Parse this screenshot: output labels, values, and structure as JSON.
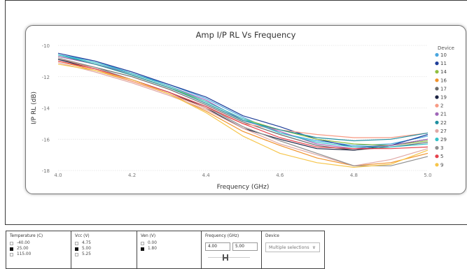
{
  "colors": {
    "10": "#4aa6df",
    "11": "#1f3f9a",
    "14": "#8fbf3f",
    "16": "#f0922b",
    "17": "#6b6b6b",
    "19": "#1b2342",
    "2": "#f79b85",
    "21": "#a067b8",
    "22": "#1f8fa0",
    "27": "#e0a9a6",
    "29": "#35c2c9",
    "3": "#8f8f8f",
    "5": "#e5424d",
    "9": "#f6c54a"
  },
  "chart_data": {
    "type": "line",
    "title": "Amp I/P RL Vs Frequency",
    "xlabel": "Frequency (GHz)",
    "ylabel": "I/P RL (dB)",
    "xlim": [
      4.0,
      5.0
    ],
    "ylim": [
      -18,
      -10
    ],
    "x_ticks": [
      "4.0",
      "4.2",
      "4.4",
      "4.6",
      "4.8",
      "5.0"
    ],
    "y_ticks": [
      "-10",
      "-12",
      "-14",
      "-16",
      "-18"
    ],
    "x": [
      4.0,
      4.1,
      4.2,
      4.3,
      4.4,
      4.5,
      4.6,
      4.7,
      4.8,
      4.9,
      5.0
    ],
    "legend_title": "Device",
    "legend_position": "right",
    "series": [
      {
        "name": "10",
        "values": [
          -10.6,
          -11.0,
          -11.8,
          -12.5,
          -13.4,
          -14.6,
          -15.6,
          -16.1,
          -16.4,
          -16.3,
          -15.8
        ]
      },
      {
        "name": "11",
        "values": [
          -10.5,
          -11.0,
          -11.7,
          -12.5,
          -13.3,
          -14.5,
          -15.2,
          -16.0,
          -16.5,
          -16.4,
          -15.7
        ]
      },
      {
        "name": "14",
        "values": [
          -10.7,
          -11.2,
          -11.9,
          -12.7,
          -13.6,
          -14.7,
          -15.4,
          -16.0,
          -16.3,
          -16.4,
          -16.1
        ]
      },
      {
        "name": "16",
        "values": [
          -11.0,
          -11.6,
          -12.3,
          -13.1,
          -14.2,
          -15.5,
          -16.4,
          -17.2,
          -17.7,
          -17.5,
          -16.9
        ]
      },
      {
        "name": "17",
        "values": [
          -10.9,
          -11.4,
          -12.0,
          -12.8,
          -13.8,
          -14.9,
          -15.7,
          -16.4,
          -16.7,
          -16.5,
          -16.2
        ]
      },
      {
        "name": "19",
        "values": [
          -10.9,
          -11.5,
          -12.2,
          -13.0,
          -14.0,
          -15.3,
          -16.0,
          -16.6,
          -16.7,
          -16.4,
          -16.0
        ]
      },
      {
        "name": "2",
        "values": [
          -10.8,
          -11.5,
          -12.3,
          -13.1,
          -14.0,
          -15.0,
          -15.4,
          -15.7,
          -15.9,
          -15.9,
          -15.6
        ]
      },
      {
        "name": "21",
        "values": [
          -10.7,
          -11.2,
          -11.8,
          -12.6,
          -13.5,
          -14.8,
          -15.5,
          -16.3,
          -16.6,
          -16.4,
          -16.0
        ]
      },
      {
        "name": "22",
        "values": [
          -10.6,
          -11.2,
          -11.9,
          -12.7,
          -13.7,
          -14.8,
          -15.4,
          -15.9,
          -16.1,
          -16.0,
          -15.6
        ]
      },
      {
        "name": "27",
        "values": [
          -11.1,
          -11.7,
          -12.4,
          -13.2,
          -14.1,
          -15.3,
          -16.3,
          -17.0,
          -17.7,
          -17.3,
          -16.6
        ]
      },
      {
        "name": "29",
        "values": [
          -10.6,
          -11.1,
          -11.8,
          -12.6,
          -13.6,
          -14.7,
          -15.6,
          -16.2,
          -16.5,
          -16.5,
          -16.3
        ]
      },
      {
        "name": "3",
        "values": [
          -10.8,
          -11.4,
          -12.2,
          -13.0,
          -13.9,
          -15.2,
          -16.1,
          -16.9,
          -17.7,
          -17.7,
          -17.1
        ]
      },
      {
        "name": "5",
        "values": [
          -11.0,
          -11.5,
          -12.2,
          -13.0,
          -13.9,
          -15.0,
          -15.9,
          -16.5,
          -16.6,
          -16.6,
          -16.5
        ]
      },
      {
        "name": "9",
        "values": [
          -11.2,
          -11.6,
          -12.2,
          -13.1,
          -14.3,
          -15.8,
          -16.9,
          -17.5,
          -17.8,
          -17.6,
          -16.7
        ]
      }
    ]
  },
  "filters": {
    "temperature": {
      "title": "Temperature (C)",
      "options": [
        {
          "label": "-40.00",
          "checked": false
        },
        {
          "label": "25.00",
          "checked": true
        },
        {
          "label": "115.00",
          "checked": false
        }
      ]
    },
    "vcc": {
      "title": "Vcc (V)",
      "options": [
        {
          "label": "4.75",
          "checked": false
        },
        {
          "label": "5.00",
          "checked": true
        },
        {
          "label": "5.25",
          "checked": false
        }
      ]
    },
    "ven": {
      "title": "Ven (V)",
      "options": [
        {
          "label": "0.00",
          "checked": false
        },
        {
          "label": "1.80",
          "checked": true
        }
      ]
    },
    "frequency": {
      "title": "Frequency (GHz)",
      "min": "4.00",
      "max": "5.00"
    },
    "device": {
      "title": "Device",
      "value": "Multiple selections"
    }
  }
}
